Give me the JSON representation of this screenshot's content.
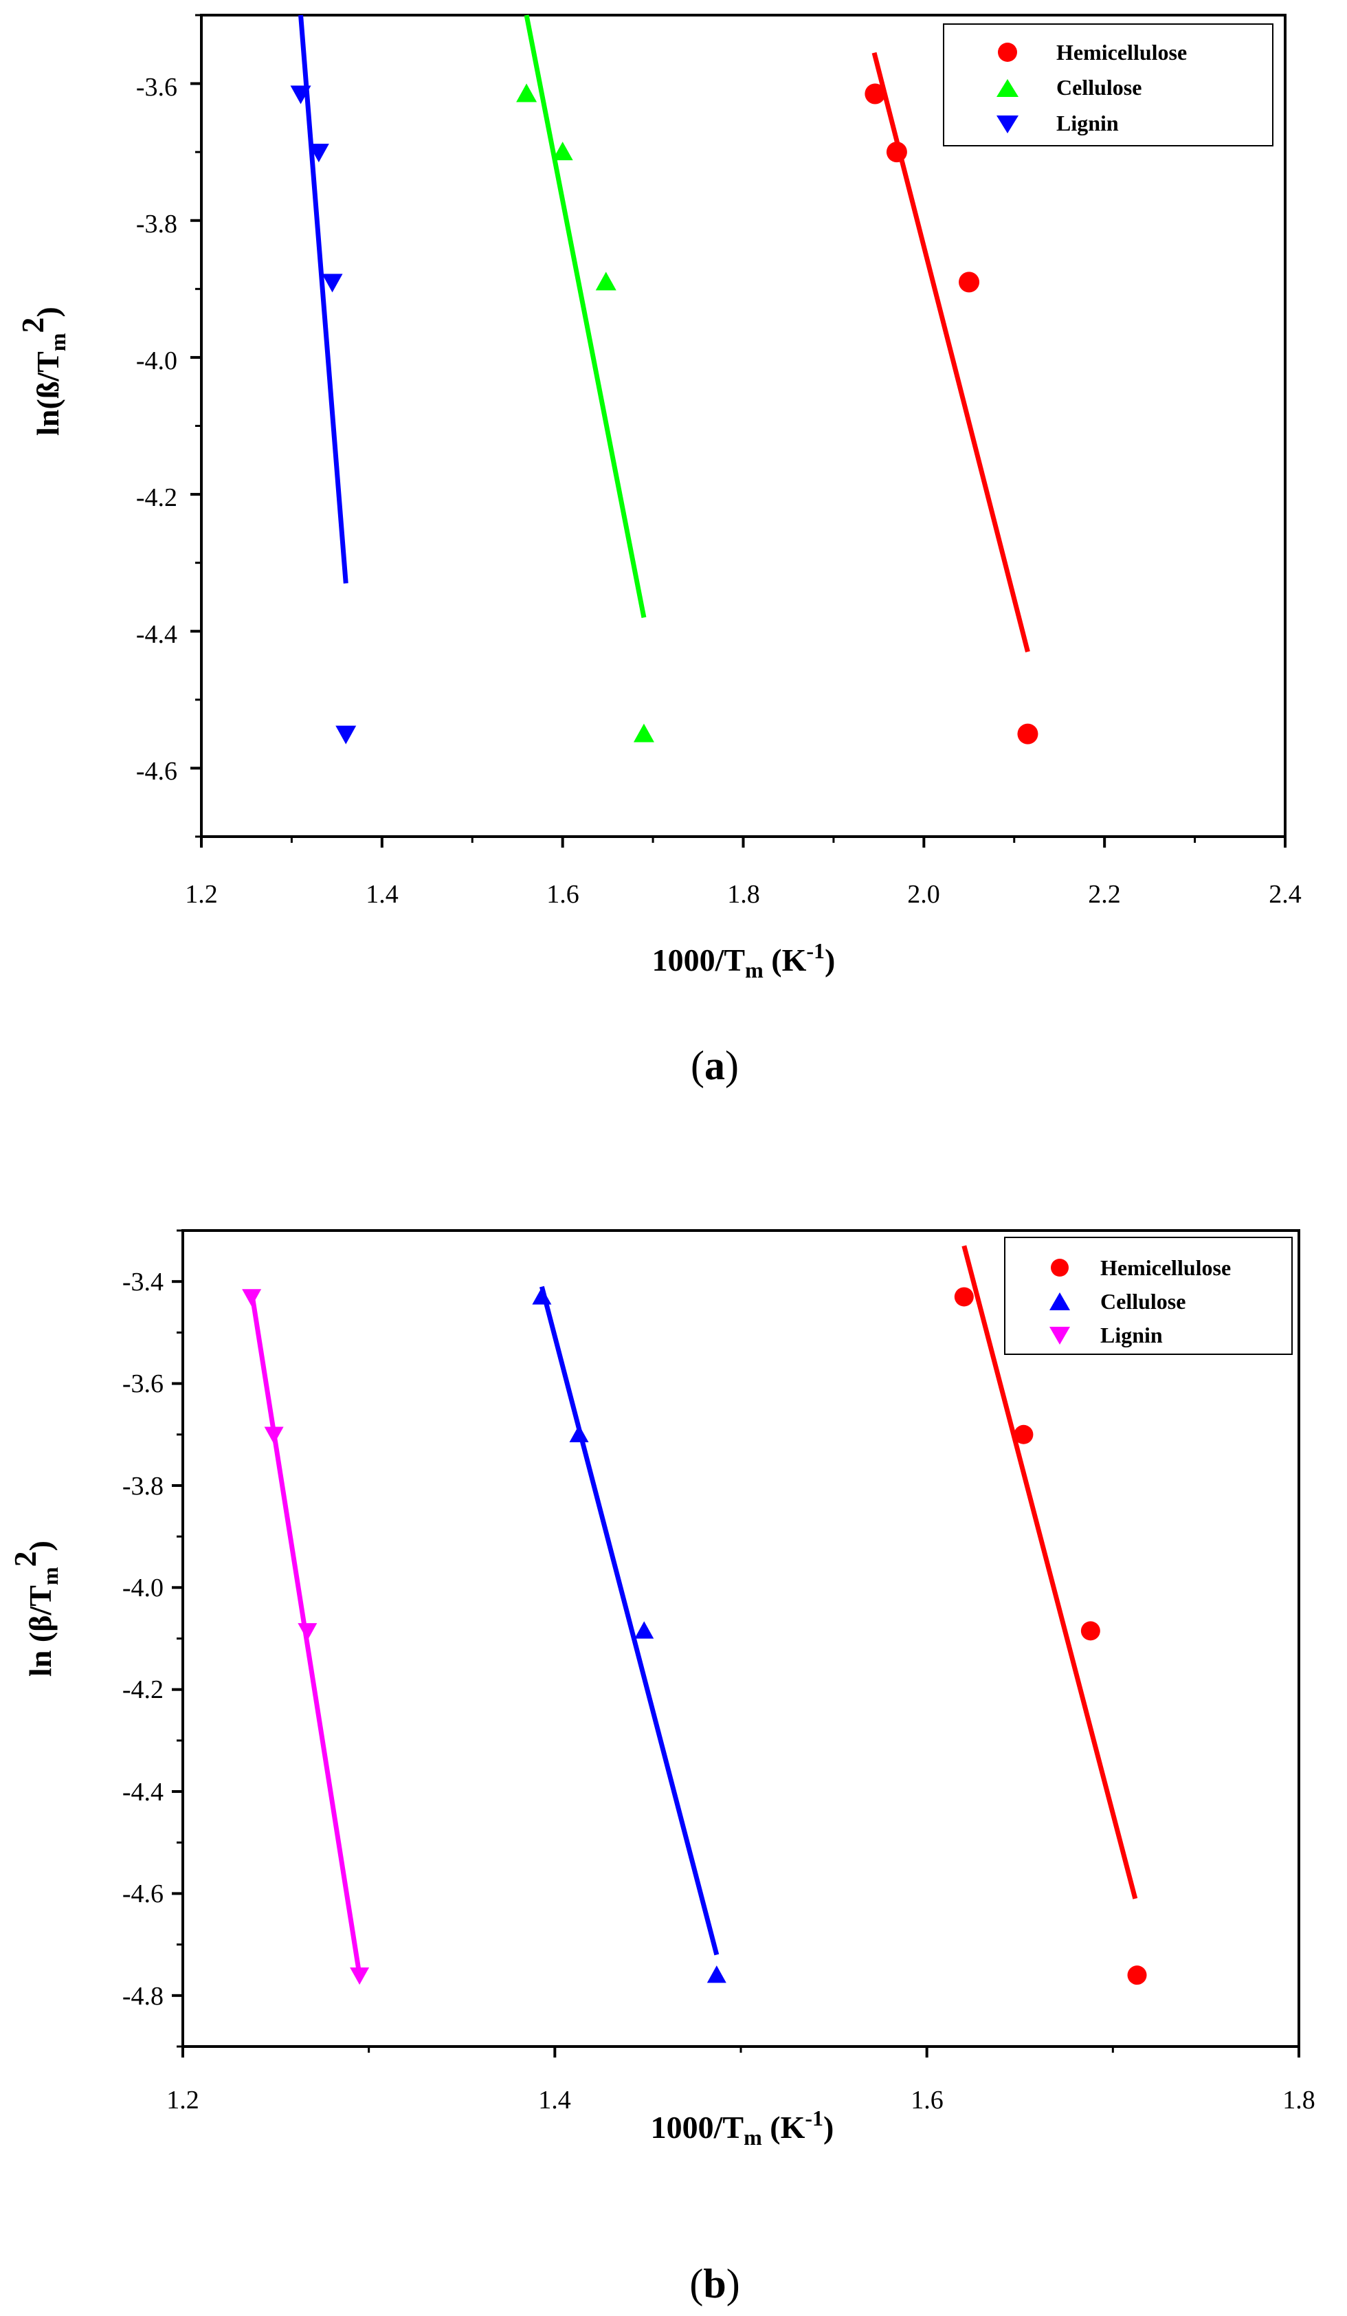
{
  "chart_data": [
    {
      "type": "scatter",
      "caption_letter": "a",
      "xlabel": {
        "main": "1000/T",
        "sub": "m",
        "unit_open": " (K",
        "unit_sup": "-1",
        "unit_close": ")"
      },
      "ylabel": {
        "main": "ln(ß/T",
        "sub": "m",
        "sup": "2",
        "close": ")"
      },
      "xlim": [
        1.2,
        2.4
      ],
      "ylim": [
        -4.7,
        -3.5
      ],
      "xticks": [
        "1.2",
        "1.4",
        "1.6",
        "1.8",
        "2.0",
        "2.2",
        "2.4"
      ],
      "yticks": [
        "-3.6",
        "-3.8",
        "-4.0",
        "-4.2",
        "-4.4",
        "-4.6"
      ],
      "legend_position": "top-right",
      "series": [
        {
          "name": "Hemicellulose",
          "color": "#ff0000",
          "marker": "circle",
          "x": [
            1.946,
            1.97,
            2.05,
            2.115
          ],
          "y": [
            -3.615,
            -3.7,
            -3.89,
            -4.55
          ],
          "fit": {
            "x": [
              1.945,
              2.115
            ],
            "y": [
              -3.555,
              -4.43
            ]
          }
        },
        {
          "name": "Cellulose",
          "color": "#00ff00",
          "marker": "triangle-up",
          "x": [
            1.56,
            1.6,
            1.648,
            1.69
          ],
          "y": [
            -3.615,
            -3.7,
            -3.89,
            -4.55
          ],
          "fit": {
            "x": [
              1.56,
              1.69
            ],
            "y": [
              -3.5,
              -4.38
            ]
          }
        },
        {
          "name": "Lignin",
          "color": "#0000ff",
          "marker": "triangle-down",
          "x": [
            1.31,
            1.33,
            1.345,
            1.36
          ],
          "y": [
            -3.615,
            -3.7,
            -3.89,
            -4.55
          ],
          "fit": {
            "x": [
              1.31,
              1.36
            ],
            "y": [
              -3.5,
              -4.33
            ]
          }
        }
      ]
    },
    {
      "type": "scatter",
      "caption_letter": "b",
      "xlabel": {
        "main": "1000/T",
        "sub": "m",
        "unit_open": " (K",
        "unit_sup": "-1",
        "unit_close": ")"
      },
      "ylabel": {
        "main": "ln (β/T",
        "sub": "m",
        "sup": "2",
        "close": ")"
      },
      "xlim": [
        1.2,
        1.8
      ],
      "ylim": [
        -4.9,
        -3.3
      ],
      "xticks": [
        "1.2",
        "1.4",
        "1.6",
        "1.8"
      ],
      "yticks": [
        "-3.4",
        "-3.6",
        "-3.8",
        "-4.0",
        "-4.2",
        "-4.4",
        "-4.6",
        "-4.8"
      ],
      "legend_position": "top-right",
      "series": [
        {
          "name": "Hemicellulose",
          "color": "#ff0000",
          "marker": "circle",
          "x": [
            1.62,
            1.652,
            1.688,
            1.713
          ],
          "y": [
            -3.43,
            -3.7,
            -4.085,
            -4.76
          ],
          "fit": {
            "x": [
              1.62,
              1.712
            ],
            "y": [
              -3.33,
              -4.61
            ]
          }
        },
        {
          "name": "Cellulose",
          "color": "#0000ff",
          "marker": "triangle-up",
          "x": [
            1.393,
            1.413,
            1.448,
            1.487
          ],
          "y": [
            -3.43,
            -3.7,
            -4.085,
            -4.76
          ],
          "fit": {
            "x": [
              1.393,
              1.487
            ],
            "y": [
              -3.41,
              -4.72
            ]
          }
        },
        {
          "name": "Lignin",
          "color": "#ff00ff",
          "marker": "triangle-down",
          "x": [
            1.237,
            1.249,
            1.267,
            1.295
          ],
          "y": [
            -3.43,
            -3.7,
            -4.085,
            -4.76
          ],
          "fit": {
            "x": [
              1.237,
              1.295
            ],
            "y": [
              -3.42,
              -4.76
            ]
          }
        }
      ]
    }
  ]
}
